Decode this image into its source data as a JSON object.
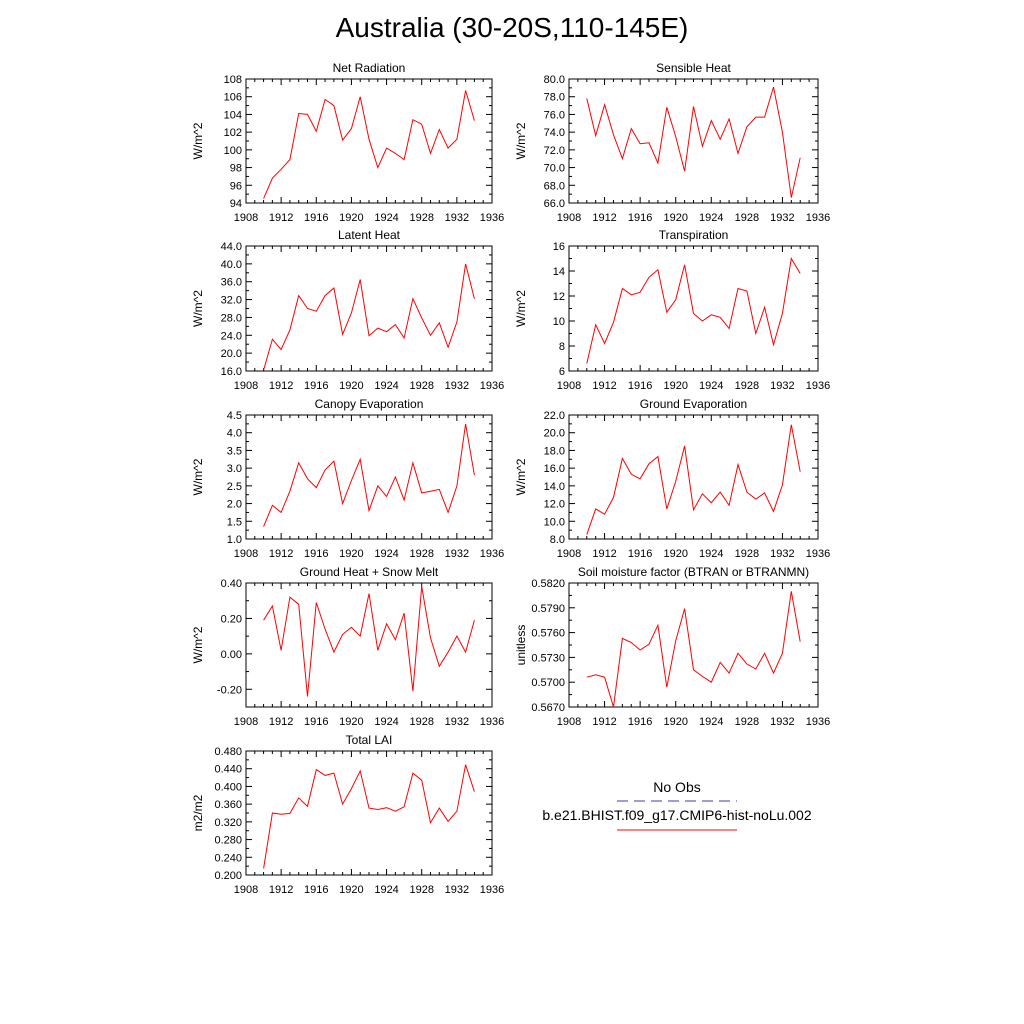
{
  "title": "Australia (30-20S,110-145E)",
  "legend": {
    "entries": [
      {
        "label": "No Obs",
        "color": "#3b3bb0",
        "dash": "dashed"
      },
      {
        "label": "b.e21.BHIST.f09_g17.CMIP6-hist-noLu.002",
        "color": "#ff0000",
        "dash": "solid"
      }
    ]
  },
  "chart_data": [
    {
      "type": "line",
      "title": "Net Radiation",
      "ylabel": "W/m^2",
      "xlim": [
        1908,
        1936
      ],
      "xticks": [
        "1908",
        "1912",
        "1916",
        "1920",
        "1924",
        "1928",
        "1932",
        "1936"
      ],
      "ylim": [
        94,
        108
      ],
      "yticks": [
        "94",
        "96",
        "98",
        "100",
        "102",
        "104",
        "106",
        "108"
      ],
      "series": [
        {
          "color": "#ff0000",
          "x": [
            1910,
            1911,
            1912,
            1913,
            1914,
            1915,
            1916,
            1917,
            1918,
            1919,
            1920,
            1921,
            1922,
            1923,
            1924,
            1925,
            1926,
            1927,
            1928,
            1929,
            1930,
            1931,
            1932,
            1933,
            1934
          ],
          "values": [
            94.5,
            96.8,
            97.8,
            98.9,
            104.1,
            104.0,
            102.1,
            105.7,
            105.0,
            101.1,
            102.4,
            106.0,
            101.2,
            98.0,
            100.2,
            99.6,
            98.9,
            103.4,
            102.9,
            99.6,
            102.3,
            100.2,
            101.2,
            106.7,
            103.3
          ]
        }
      ]
    },
    {
      "type": "line",
      "title": "Sensible Heat",
      "ylabel": "W/m^2",
      "xlim": [
        1908,
        1936
      ],
      "xticks": [
        "1908",
        "1912",
        "1916",
        "1920",
        "1924",
        "1928",
        "1932",
        "1936"
      ],
      "ylim": [
        66,
        80
      ],
      "yticks": [
        "66.0",
        "68.0",
        "70.0",
        "72.0",
        "74.0",
        "76.0",
        "78.0",
        "80.0"
      ],
      "series": [
        {
          "color": "#ff0000",
          "x": [
            1910,
            1911,
            1912,
            1913,
            1914,
            1915,
            1916,
            1917,
            1918,
            1919,
            1920,
            1921,
            1922,
            1923,
            1924,
            1925,
            1926,
            1927,
            1928,
            1929,
            1930,
            1931,
            1932,
            1933,
            1934
          ],
          "values": [
            77.8,
            73.6,
            77.1,
            73.7,
            71.0,
            74.4,
            72.7,
            72.8,
            70.5,
            76.8,
            73.5,
            69.6,
            76.9,
            72.4,
            75.3,
            73.2,
            75.5,
            71.6,
            74.6,
            75.7,
            75.7,
            79.1,
            74.0,
            66.6,
            71.1
          ]
        }
      ]
    },
    {
      "type": "line",
      "title": "Latent Heat",
      "ylabel": "W/m^2",
      "xlim": [
        1908,
        1936
      ],
      "xticks": [
        "1908",
        "1912",
        "1916",
        "1920",
        "1924",
        "1928",
        "1932",
        "1936"
      ],
      "ylim": [
        16,
        44
      ],
      "yticks": [
        "16.0",
        "20.0",
        "24.0",
        "28.0",
        "32.0",
        "36.0",
        "40.0",
        "44.0"
      ],
      "series": [
        {
          "color": "#ff0000",
          "x": [
            1910,
            1911,
            1912,
            1913,
            1914,
            1915,
            1916,
            1917,
            1918,
            1919,
            1920,
            1921,
            1922,
            1923,
            1924,
            1925,
            1926,
            1927,
            1928,
            1929,
            1930,
            1931,
            1932,
            1933,
            1934
          ],
          "values": [
            16.2,
            23.1,
            20.8,
            25.2,
            32.9,
            30.0,
            29.4,
            32.9,
            34.6,
            24.2,
            29.0,
            36.5,
            23.9,
            25.6,
            24.8,
            26.4,
            23.4,
            32.2,
            27.9,
            24.0,
            26.8,
            21.3,
            27.0,
            40.0,
            32.2
          ]
        }
      ]
    },
    {
      "type": "line",
      "title": "Transpiration",
      "ylabel": "W/m^2",
      "xlim": [
        1908,
        1936
      ],
      "xticks": [
        "1908",
        "1912",
        "1916",
        "1920",
        "1924",
        "1928",
        "1932",
        "1936"
      ],
      "ylim": [
        6,
        16
      ],
      "yticks": [
        "6",
        "8",
        "10",
        "12",
        "14",
        "16"
      ],
      "series": [
        {
          "color": "#ff0000",
          "x": [
            1910,
            1911,
            1912,
            1913,
            1914,
            1915,
            1916,
            1917,
            1918,
            1919,
            1920,
            1921,
            1922,
            1923,
            1924,
            1925,
            1926,
            1927,
            1928,
            1929,
            1930,
            1931,
            1932,
            1933,
            1934
          ],
          "values": [
            6.6,
            9.7,
            8.2,
            9.9,
            12.6,
            12.1,
            12.3,
            13.5,
            14.1,
            10.7,
            11.7,
            14.5,
            10.6,
            10.0,
            10.5,
            10.3,
            9.4,
            12.6,
            12.4,
            9.0,
            11.1,
            8.1,
            10.6,
            15.0,
            13.8
          ]
        }
      ]
    },
    {
      "type": "line",
      "title": "Canopy Evaporation",
      "ylabel": "W/m^2",
      "xlim": [
        1908,
        1936
      ],
      "xticks": [
        "1908",
        "1912",
        "1916",
        "1920",
        "1924",
        "1928",
        "1932",
        "1936"
      ],
      "ylim": [
        1.0,
        4.5
      ],
      "yticks": [
        "1.0",
        "1.5",
        "2.0",
        "2.5",
        "3.0",
        "3.5",
        "4.0",
        "4.5"
      ],
      "series": [
        {
          "color": "#ff0000",
          "x": [
            1910,
            1911,
            1912,
            1913,
            1914,
            1915,
            1916,
            1917,
            1918,
            1919,
            1920,
            1921,
            1922,
            1923,
            1924,
            1925,
            1926,
            1927,
            1928,
            1929,
            1930,
            1931,
            1932,
            1933,
            1934
          ],
          "values": [
            1.35,
            1.95,
            1.75,
            2.35,
            3.15,
            2.7,
            2.45,
            2.95,
            3.2,
            2.0,
            2.65,
            3.25,
            1.8,
            2.5,
            2.2,
            2.75,
            2.1,
            3.15,
            2.3,
            2.35,
            2.4,
            1.75,
            2.5,
            4.25,
            2.8
          ]
        }
      ]
    },
    {
      "type": "line",
      "title": "Ground Evaporation",
      "ylabel": "W/m^2",
      "xlim": [
        1908,
        1936
      ],
      "xticks": [
        "1908",
        "1912",
        "1916",
        "1920",
        "1924",
        "1928",
        "1932",
        "1936"
      ],
      "ylim": [
        8,
        22
      ],
      "yticks": [
        "8.0",
        "10.0",
        "12.0",
        "14.0",
        "16.0",
        "18.0",
        "20.0",
        "22.0"
      ],
      "series": [
        {
          "color": "#ff0000",
          "x": [
            1910,
            1911,
            1912,
            1913,
            1914,
            1915,
            1916,
            1917,
            1918,
            1919,
            1920,
            1921,
            1922,
            1923,
            1924,
            1925,
            1926,
            1927,
            1928,
            1929,
            1930,
            1931,
            1932,
            1933,
            1934
          ],
          "values": [
            8.5,
            11.4,
            10.8,
            12.7,
            17.1,
            15.3,
            14.8,
            16.5,
            17.3,
            11.4,
            14.5,
            18.5,
            11.3,
            13.1,
            12.1,
            13.3,
            11.8,
            16.4,
            13.3,
            12.5,
            13.2,
            11.1,
            14.1,
            20.9,
            15.6
          ]
        }
      ]
    },
    {
      "type": "line",
      "title": "Ground Heat + Snow Melt",
      "ylabel": "W/m^2",
      "xlim": [
        1908,
        1936
      ],
      "xticks": [
        "1908",
        "1912",
        "1916",
        "1920",
        "1924",
        "1928",
        "1932",
        "1936"
      ],
      "ylim": [
        -0.3,
        0.4
      ],
      "yticks": [
        "-0.20",
        "0.00",
        "0.20",
        "0.40"
      ],
      "ytickvalues": [
        -0.2,
        0.0,
        0.2,
        0.4
      ],
      "series": [
        {
          "color": "#ff0000",
          "x": [
            1910,
            1911,
            1912,
            1913,
            1914,
            1915,
            1916,
            1917,
            1918,
            1919,
            1920,
            1921,
            1922,
            1923,
            1924,
            1925,
            1926,
            1927,
            1928,
            1929,
            1930,
            1931,
            1932,
            1933,
            1934
          ],
          "values": [
            0.19,
            0.27,
            0.02,
            0.32,
            0.28,
            -0.24,
            0.29,
            0.14,
            0.01,
            0.11,
            0.15,
            0.1,
            0.34,
            0.02,
            0.17,
            0.08,
            0.23,
            -0.21,
            0.38,
            0.09,
            -0.07,
            0.01,
            0.1,
            0.01,
            0.19
          ]
        }
      ]
    },
    {
      "type": "line",
      "title": "Soil moisture factor (BTRAN or BTRANMN)",
      "ylabel": "unitless",
      "xlim": [
        1908,
        1936
      ],
      "xticks": [
        "1908",
        "1912",
        "1916",
        "1920",
        "1924",
        "1928",
        "1932",
        "1936"
      ],
      "ylim": [
        0.567,
        0.582
      ],
      "yticks": [
        "0.5670",
        "0.5700",
        "0.5730",
        "0.5760",
        "0.5790",
        "0.5820"
      ],
      "series": [
        {
          "color": "#ff0000",
          "x": [
            1910,
            1911,
            1912,
            1913,
            1914,
            1915,
            1916,
            1917,
            1918,
            1919,
            1920,
            1921,
            1922,
            1923,
            1924,
            1925,
            1926,
            1927,
            1928,
            1929,
            1930,
            1931,
            1932,
            1933,
            1934
          ],
          "values": [
            0.5706,
            0.5709,
            0.5706,
            0.567,
            0.5753,
            0.5748,
            0.5739,
            0.5746,
            0.5769,
            0.5694,
            0.575,
            0.5789,
            0.5715,
            0.5707,
            0.57,
            0.5724,
            0.5711,
            0.5735,
            0.5722,
            0.5716,
            0.5735,
            0.5711,
            0.5735,
            0.581,
            0.5749
          ]
        }
      ]
    },
    {
      "type": "line",
      "title": "Total LAI",
      "ylabel": "m2/m2",
      "xlim": [
        1908,
        1936
      ],
      "xticks": [
        "1908",
        "1912",
        "1916",
        "1920",
        "1924",
        "1928",
        "1932",
        "1936"
      ],
      "ylim": [
        0.2,
        0.48
      ],
      "yticks": [
        "0.200",
        "0.240",
        "0.280",
        "0.320",
        "0.360",
        "0.400",
        "0.440",
        "0.480"
      ],
      "series": [
        {
          "color": "#ff0000",
          "x": [
            1910,
            1911,
            1912,
            1913,
            1914,
            1915,
            1916,
            1917,
            1918,
            1919,
            1920,
            1921,
            1922,
            1923,
            1924,
            1925,
            1926,
            1927,
            1928,
            1929,
            1930,
            1931,
            1932,
            1933,
            1934
          ],
          "values": [
            0.215,
            0.34,
            0.337,
            0.339,
            0.374,
            0.355,
            0.438,
            0.425,
            0.43,
            0.36,
            0.395,
            0.435,
            0.351,
            0.348,
            0.352,
            0.344,
            0.354,
            0.43,
            0.414,
            0.318,
            0.351,
            0.321,
            0.344,
            0.449,
            0.388
          ]
        }
      ]
    }
  ]
}
